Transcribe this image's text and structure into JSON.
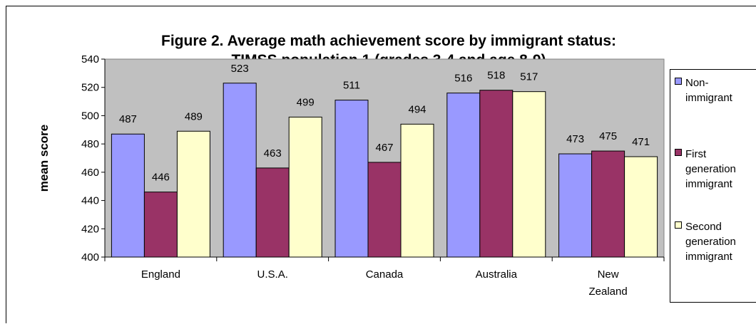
{
  "chart_data": {
    "type": "bar",
    "title": [
      "Figure 2. Average math achievement score by immigrant status:",
      "TIMSS population 1 (grades 3-4 and age 8-9)"
    ],
    "ylabel": "mean score",
    "xlabel": "",
    "ylim": [
      400,
      540
    ],
    "yticks": [
      "400",
      "420",
      "440",
      "460",
      "480",
      "500",
      "520",
      "540"
    ],
    "categories": [
      [
        "England"
      ],
      [
        "U.S.A."
      ],
      [
        "Canada"
      ],
      [
        "Australia"
      ],
      [
        "New",
        "Zealand"
      ]
    ],
    "series": [
      {
        "name": [
          "Non-",
          "immigrant"
        ],
        "values": [
          487,
          523,
          511,
          516,
          473
        ],
        "labels": [
          "487",
          "523",
          "511",
          "516",
          "473"
        ],
        "color": "#9999ff"
      },
      {
        "name": [
          "First",
          "generation",
          "immigrant"
        ],
        "values": [
          446,
          463,
          467,
          518,
          475
        ],
        "labels": [
          "446",
          "463",
          "467",
          "518",
          "475"
        ],
        "color": "#993366"
      },
      {
        "name": [
          "Second",
          "generation",
          "immigrant"
        ],
        "values": [
          489,
          499,
          494,
          517,
          471
        ],
        "labels": [
          "489",
          "499",
          "494",
          "517",
          "471"
        ],
        "color": "#ffffcc"
      }
    ],
    "plot_background": "#c0c0c0",
    "grid": false,
    "legend": "right"
  }
}
